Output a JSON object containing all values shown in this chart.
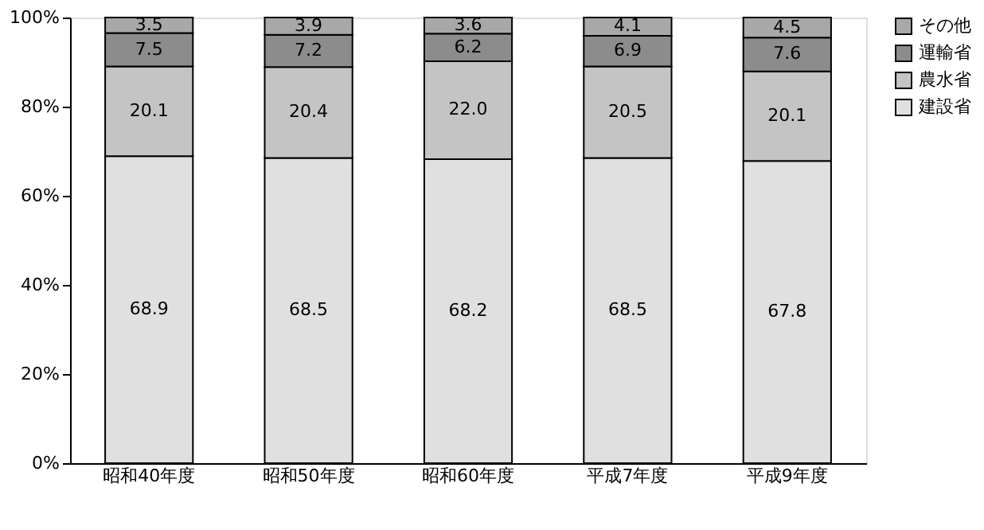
{
  "chart_data": {
    "type": "bar",
    "stacked": true,
    "categories": [
      "昭和40年度",
      "昭和50年度",
      "昭和60年度",
      "平成7年度",
      "平成9年度"
    ],
    "series": [
      {
        "name": "建設省",
        "color": "#e0e0e0",
        "values": [
          68.9,
          68.5,
          68.2,
          68.5,
          67.8
        ],
        "value_labels": [
          "68.9",
          "68.5",
          "68.2",
          "68.5",
          "67.8"
        ]
      },
      {
        "name": "農水省",
        "color": "#c4c4c4",
        "values": [
          20.1,
          20.4,
          22.0,
          20.5,
          20.1
        ],
        "value_labels": [
          "20.1",
          "20.4",
          "22.0",
          "20.5",
          "20.1"
        ]
      },
      {
        "name": "運輸省",
        "color": "#8c8c8c",
        "values": [
          7.5,
          7.2,
          6.2,
          6.9,
          7.6
        ],
        "value_labels": [
          "7.5",
          "7.2",
          "6.2",
          "6.9",
          "7.6"
        ]
      },
      {
        "name": "その他",
        "color": "#a8a8a8",
        "values": [
          3.5,
          3.9,
          3.6,
          4.1,
          4.5
        ],
        "value_labels": [
          "3.5",
          "3.9",
          "3.6",
          "4.1",
          "4.5"
        ]
      }
    ],
    "ylim": [
      0,
      100
    ],
    "yticks": [
      {
        "value": 0,
        "label": "0%"
      },
      {
        "value": 20,
        "label": "20%"
      },
      {
        "value": 40,
        "label": "40%"
      },
      {
        "value": 60,
        "label": "60%"
      },
      {
        "value": 80,
        "label": "80%"
      },
      {
        "value": 100,
        "label": "100%"
      }
    ],
    "legend": "right",
    "grid": false
  }
}
